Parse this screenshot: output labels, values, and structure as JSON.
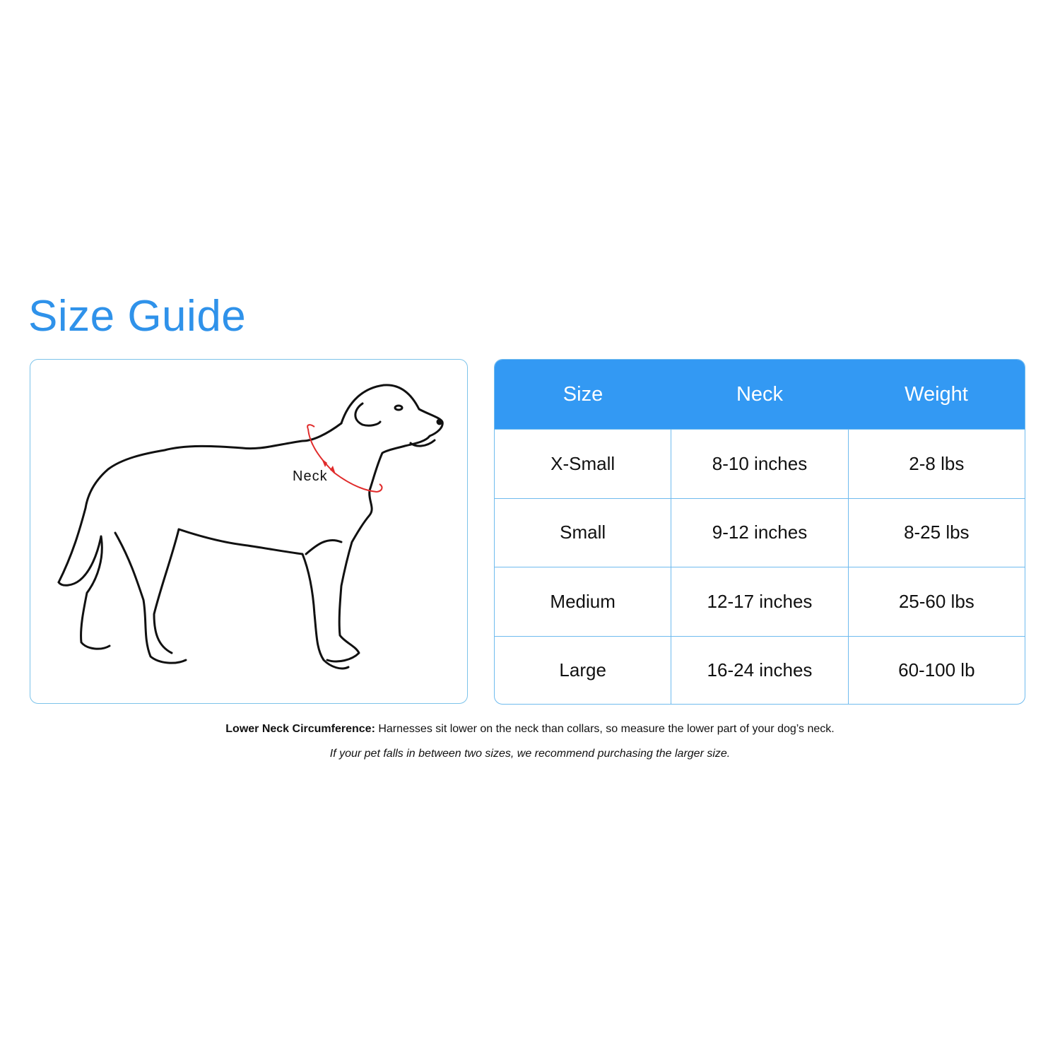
{
  "title": "Size Guide",
  "illustration": {
    "neck_label": "Neck",
    "measure_color": "#e02b2b"
  },
  "table": {
    "header_color": "#3399f3",
    "headers": [
      "Size",
      "Neck",
      "Weight"
    ],
    "rows": [
      [
        "X-Small",
        "8-10 inches",
        "2-8 lbs"
      ],
      [
        "Small",
        "9-12 inches",
        "8-25 lbs"
      ],
      [
        "Medium",
        "12-17 inches",
        "25-60 lbs"
      ],
      [
        "Large",
        "16-24 inches",
        "60-100 lb"
      ]
    ]
  },
  "notes": {
    "lower_neck_bold": "Lower Neck Circumference:",
    "lower_neck_text": " Harnesses sit lower on the neck than collars, so measure the lower part of your dog’s neck.",
    "between_sizes": "If your pet falls in between two sizes, we recommend purchasing the larger size."
  }
}
